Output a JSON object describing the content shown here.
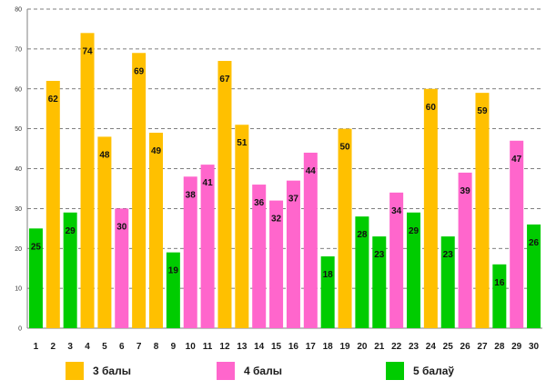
{
  "chart_data": {
    "type": "bar",
    "title": "",
    "xlabel": "",
    "ylabel": "",
    "ylim": [
      0,
      80
    ],
    "yticks": [
      "0",
      "10",
      "20",
      "30",
      "40",
      "50",
      "60",
      "70",
      "80"
    ],
    "categories": [
      "1",
      "2",
      "3",
      "4",
      "5",
      "6",
      "7",
      "8",
      "9",
      "10",
      "11",
      "12",
      "13",
      "14",
      "15",
      "16",
      "17",
      "18",
      "19",
      "20",
      "21",
      "22",
      "23",
      "24",
      "25",
      "26",
      "27",
      "28",
      "29",
      "30"
    ],
    "values": [
      25,
      62,
      29,
      74,
      48,
      30,
      69,
      49,
      19,
      38,
      41,
      67,
      51,
      36,
      32,
      37,
      44,
      18,
      50,
      28,
      23,
      34,
      29,
      60,
      23,
      39,
      59,
      16,
      47,
      26
    ],
    "series_index": [
      2,
      0,
      2,
      0,
      0,
      1,
      0,
      0,
      2,
      1,
      1,
      0,
      0,
      1,
      1,
      1,
      1,
      2,
      0,
      2,
      2,
      1,
      2,
      0,
      2,
      1,
      0,
      2,
      1,
      2
    ],
    "series": [
      {
        "name": "3 балы",
        "color": "#FFC000"
      },
      {
        "name": "4 балы",
        "color": "#FF66CC"
      },
      {
        "name": "5 балаў",
        "color": "#00CC00"
      }
    ],
    "grid": true,
    "legend": "bottom"
  }
}
